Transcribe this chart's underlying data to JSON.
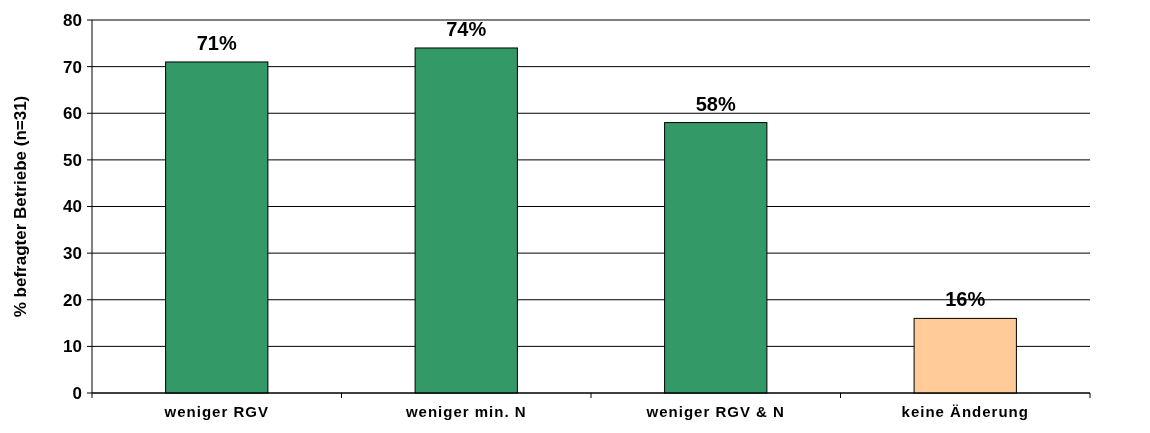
{
  "chart_data": {
    "type": "bar",
    "ylabel": "% befragter Betriebe (n=31)",
    "categories": [
      "weniger RGV",
      "weniger min. N",
      "weniger RGV & N",
      "keine Änderung"
    ],
    "values": [
      71,
      74,
      58,
      16
    ],
    "value_labels": [
      "71%",
      "74%",
      "58%",
      "16%"
    ],
    "colors": [
      "#339966",
      "#339966",
      "#339966",
      "#ffcc99"
    ],
    "ylim": [
      0,
      80
    ],
    "yticks": [
      0,
      10,
      20,
      30,
      40,
      50,
      60,
      70,
      80
    ],
    "grid": "y"
  }
}
